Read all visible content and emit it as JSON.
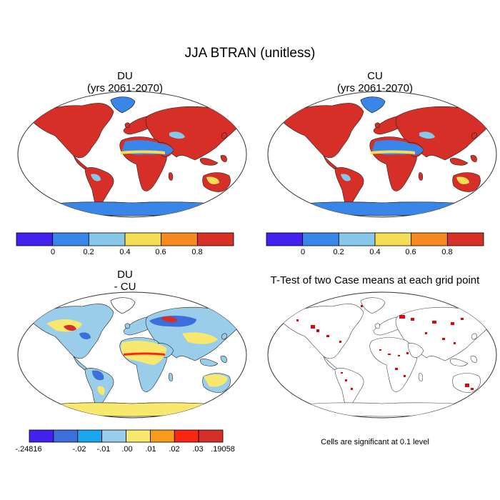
{
  "figure": {
    "title": "JJA BTRAN (unitless)",
    "panels": [
      {
        "id": "du",
        "title_line1": "DU",
        "title_line2": "(yrs 2061-2070)"
      },
      {
        "id": "cu",
        "title_line1": "CU",
        "title_line2": "(yrs 2061-2070)"
      },
      {
        "id": "diff",
        "title_line1": "DU",
        "title_line2": "- CU"
      },
      {
        "id": "ttest",
        "title_line1": "T-Test of two Case means at each grid point",
        "title_line2": ""
      }
    ],
    "note": "Cells are significant at 0.1 level"
  },
  "colorbar_main": {
    "labels": [
      "0",
      "0.2",
      "0.4",
      "0.6",
      "0.8"
    ],
    "colors": [
      "#4421ee",
      "#3a86e8",
      "#87c8ea",
      "#f5dc55",
      "#f58a22",
      "#d63027"
    ]
  },
  "colorbar_diff": {
    "labels": [
      "-.24816",
      "-.02",
      "-.01",
      ".00",
      ".01",
      ".02",
      ".03",
      ".19058"
    ],
    "colors": [
      "#4421ee",
      "#3c6fdc",
      "#1aa7f0",
      "#99cdea",
      "#f8e86e",
      "#f79c1c",
      "#fb2611",
      "#d62f27"
    ]
  },
  "styles": {
    "coast": "#222222",
    "ocean": "#ffffff",
    "significant": "#e8000b"
  }
}
